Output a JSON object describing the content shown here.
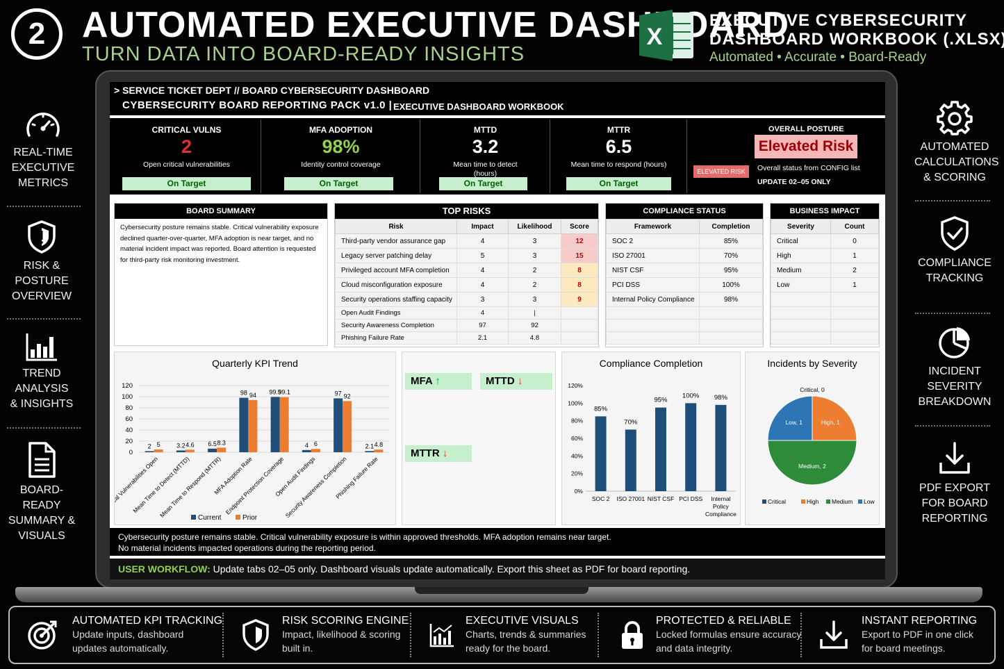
{
  "header": {
    "step_number": "2",
    "title": "AUTOMATED EXECUTIVE DASHBOARD",
    "subtitle": "TURN DATA INTO BOARD-READY INSIGHTS",
    "workbook_title_line1": "EXECUTIVE CYBERSECURITY",
    "workbook_title_line2": "DASHBOARD WORKBOOK (.XLSX)",
    "workbook_tagline": "Automated • Accurate • Board-Ready",
    "excel_icon": "excel-icon"
  },
  "left_features": [
    {
      "icon": "speedometer-icon",
      "lines": [
        "REAL-TIME",
        "EXECUTIVE",
        "METRICS"
      ]
    },
    {
      "icon": "shield-alert-icon",
      "lines": [
        "RISK &",
        "POSTURE",
        "OVERVIEW"
      ]
    },
    {
      "icon": "bar-chart-icon",
      "lines": [
        "TREND",
        "ANALYSIS",
        "& INSIGHTS"
      ]
    },
    {
      "icon": "document-icon",
      "lines": [
        "BOARD-READY",
        "SUMMARY &",
        "VISUALS"
      ]
    }
  ],
  "right_features": [
    {
      "icon": "gear-icon",
      "lines": [
        "AUTOMATED",
        "CALCULATIONS",
        "& SCORING"
      ]
    },
    {
      "icon": "shield-check-icon",
      "lines": [
        "COMPLIANCE",
        "TRACKING"
      ]
    },
    {
      "icon": "pie-chart-icon",
      "lines": [
        "INCIDENT",
        "SEVERITY",
        "BREAKDOWN"
      ]
    },
    {
      "icon": "download-icon",
      "lines": [
        "PDF EXPORT",
        "FOR BOARD",
        "REPORTING"
      ]
    }
  ],
  "dashboard": {
    "breadcrumb": "> SERVICE TICKET DEPT  //  BOARD CYBERSECURITY DASHBOARD",
    "pack_title": "CYBERSECURITY BOARD REPORTING PACK v1.0   |",
    "pack_sub": "EXECUTIVE DASHBOARD WORKBOOK",
    "kpis": [
      {
        "label": "CRITICAL VULNS",
        "value": "2",
        "desc": "Open critical vulnerabilities",
        "status": "On Target",
        "color": "#e0312f"
      },
      {
        "label": "MFA ADOPTION",
        "value": "98%",
        "desc": "Identity control coverage",
        "status": "On Target",
        "color": "#92d050"
      },
      {
        "label": "MTTD",
        "value": "3.2",
        "desc": "Mean time to detect (hours)",
        "status": "On Target",
        "color": "#ffffff"
      },
      {
        "label": "MTTR",
        "value": "6.5",
        "desc": "Mean time to respond (hours)",
        "status": "On Target",
        "color": "#ffffff"
      }
    ],
    "posture": {
      "label": "OVERALL POSTURE",
      "value": "Elevated Risk",
      "chip": "ELEVATED RISK",
      "note": "Overall status from CONFIG list",
      "update": "UPDATE 02–05 ONLY"
    },
    "board_summary": {
      "heading": "BOARD SUMMARY",
      "text": "Cybersecurity posture remains stable. Critical vulnerability exposure declined quarter-over-quarter, MFA adoption is near target, and no material incident impact was reported. Board attention is requested for third-party risk monitoring investment."
    },
    "top_risks": {
      "heading": "TOP RISKS",
      "columns": [
        "Risk",
        "Impact",
        "Likelihood",
        "Score"
      ],
      "rows": [
        [
          "Third-party vendor assurance gap",
          "4",
          "3",
          "12"
        ],
        [
          "Legacy server patching delay",
          "5",
          "3",
          "15"
        ],
        [
          "Privileged account MFA completion",
          "4",
          "2",
          "8"
        ],
        [
          "Cloud misconfiguration exposure",
          "4",
          "2",
          "8"
        ],
        [
          "Security operations staffing capacity",
          "3",
          "3",
          "9"
        ],
        [
          "Open Audit Findings",
          "4",
          "|",
          ""
        ],
        [
          "Security Awareness Completion",
          "97",
          "92",
          ""
        ],
        [
          "Phishing Failure Rate",
          "2.1",
          "4.8",
          ""
        ]
      ]
    },
    "compliance": {
      "heading": "COMPLIANCE STATUS",
      "columns": [
        "Framework",
        "Completion"
      ],
      "rows": [
        [
          "SOC 2",
          "85%"
        ],
        [
          "ISO 27001",
          "70%"
        ],
        [
          "NIST CSF",
          "95%"
        ],
        [
          "PCI DSS",
          "100%"
        ],
        [
          "Internal Policy Compliance",
          "98%"
        ]
      ]
    },
    "business_impact": {
      "heading": "BUSINESS IMPACT",
      "columns": [
        "Severity",
        "Count"
      ],
      "rows": [
        [
          "Critical",
          "0"
        ],
        [
          "High",
          "1"
        ],
        [
          "Medium",
          "2"
        ],
        [
          "Low",
          "1"
        ]
      ]
    },
    "trend_chips": {
      "mfa": "MFA",
      "mttd": "MTTD",
      "mttr": "MTTR"
    },
    "footer_note_line1": "Cybersecurity posture remains stable. Critical vulnerability exposure is within approved thresholds. MFA adoption remains near target.",
    "footer_note_line2": "No material incidents impacted operations during the reporting period.",
    "workflow_label": "USER WORKFLOW:",
    "workflow_text": "Update tabs 02–05 only. Dashboard visuals update automatically. Export this sheet as PDF for board reporting."
  },
  "chart_data": [
    {
      "type": "bar",
      "title": "Quarterly KPI Trend",
      "categories": [
        "Critical Vulnerabilities Open",
        "Mean Time to Detect (MTTD)",
        "Mean Time to Respond (MTTR)",
        "MFA Adoption Rate",
        "Endpoint Protection Coverage",
        "Open Audit Findings",
        "Security Awareness Completion",
        "Phishing Failure Rate"
      ],
      "series": [
        {
          "name": "Current",
          "values": [
            2,
            3.2,
            6.5,
            98,
            99.5,
            4,
            97,
            2.1
          ],
          "color": "#1f4e79"
        },
        {
          "name": "Prior",
          "values": [
            5,
            4.6,
            8.3,
            94,
            99.1,
            6,
            92,
            4.8
          ],
          "color": "#ed7d31"
        }
      ],
      "yticks": [
        "0",
        "20",
        "40",
        "60",
        "80",
        "100",
        "120"
      ],
      "ylim": [
        0,
        120
      ]
    },
    {
      "type": "bar",
      "title": "Compliance Completion",
      "categories": [
        "SOC 2",
        "ISO 27001",
        "NIST CSF",
        "PCI DSS",
        "Internal Policy Compliance"
      ],
      "values": [
        85,
        70,
        95,
        100,
        98
      ],
      "labels": [
        "85%",
        "70%",
        "95%",
        "100%",
        "98%"
      ],
      "yticks": [
        "0%",
        "20%",
        "40%",
        "60%",
        "80%",
        "100%",
        "120%"
      ],
      "ylim": [
        0,
        120
      ],
      "color": "#1f4e79"
    },
    {
      "type": "pie",
      "title": "Incidents by Severity",
      "categories": [
        "Critical",
        "High",
        "Medium",
        "Low"
      ],
      "values": [
        0,
        1,
        2,
        1
      ],
      "labels": [
        "Critical, 0",
        "High, 1",
        "Medium, 2",
        "Low, 1"
      ],
      "colors": [
        "#1f4e79",
        "#ed7d31",
        "#2e8b3a",
        "#2e75b6"
      ]
    }
  ],
  "footer_features": [
    {
      "icon": "target-icon",
      "title": "AUTOMATED KPI TRACKING",
      "desc1": "Update inputs, dashboard",
      "desc2": "updates automatically."
    },
    {
      "icon": "shield-icon",
      "title": "RISK SCORING ENGINE",
      "desc1": "Impact, likelihood & scoring",
      "desc2": "built in."
    },
    {
      "icon": "chart-icon",
      "title": "EXECUTIVE VISUALS",
      "desc1": "Charts, trends & summaries",
      "desc2": "ready for the board."
    },
    {
      "icon": "lock-icon",
      "title": "PROTECTED & RELIABLE",
      "desc1": "Locked formulas ensure accuracy",
      "desc2": "and data integrity."
    },
    {
      "icon": "download-icon",
      "title": "INSTANT REPORTING",
      "desc1": "Export to PDF in one click",
      "desc2": "for board meetings."
    }
  ]
}
